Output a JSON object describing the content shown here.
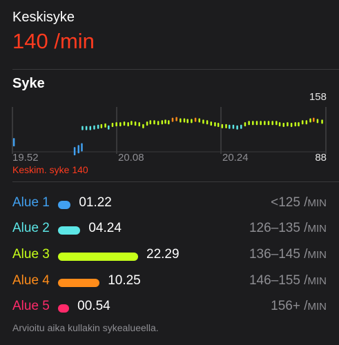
{
  "header": {
    "avg_label": "Keskisyke",
    "avg_value": "140 /min"
  },
  "chart_section": {
    "title": "Syke",
    "y_max_label": "158",
    "y_min_label": "88",
    "x_ticks": [
      "19.52",
      "20.08",
      "20.24"
    ],
    "avg_text": "Keskim. syke 140"
  },
  "chart_data": {
    "type": "scatter",
    "title": "",
    "xlabel": "",
    "ylabel": "",
    "x_ticks": [
      "19.52",
      "20.08",
      "20.24"
    ],
    "ylim": [
      88,
      158
    ],
    "minutes_range": [
      0,
      48
    ],
    "series": [
      {
        "values": [
          [
            0.2,
            103
          ],
          [
            9.5,
            89
          ],
          [
            10.1,
            92
          ],
          [
            10.6,
            95
          ],
          [
            10.7,
            125
          ],
          [
            11.3,
            125
          ],
          [
            11.9,
            125
          ],
          [
            12.5,
            126
          ],
          [
            13.1,
            127
          ],
          [
            13.6,
            128
          ],
          [
            14.2,
            129
          ],
          [
            14.7,
            126
          ],
          [
            15.3,
            130
          ],
          [
            15.9,
            131
          ],
          [
            16.5,
            131
          ],
          [
            17.1,
            132
          ],
          [
            17.7,
            131
          ],
          [
            18.2,
            133
          ],
          [
            18.8,
            132
          ],
          [
            19.4,
            131
          ],
          [
            20.0,
            128
          ],
          [
            20.6,
            132
          ],
          [
            21.1,
            134
          ],
          [
            21.7,
            134
          ],
          [
            22.3,
            133
          ],
          [
            22.9,
            134
          ],
          [
            23.4,
            135
          ],
          [
            23.9,
            134
          ],
          [
            24.5,
            138
          ],
          [
            25.1,
            139
          ],
          [
            25.7,
            137
          ],
          [
            26.3,
            137
          ],
          [
            26.8,
            136
          ],
          [
            27.4,
            136
          ],
          [
            28.0,
            138
          ],
          [
            28.6,
            137
          ],
          [
            29.2,
            135
          ],
          [
            29.8,
            134
          ],
          [
            30.4,
            132
          ],
          [
            31.0,
            131
          ],
          [
            31.5,
            130
          ],
          [
            32.1,
            128
          ],
          [
            32.7,
            128
          ],
          [
            33.2,
            127
          ],
          [
            33.8,
            127
          ],
          [
            34.4,
            126
          ],
          [
            35.0,
            127
          ],
          [
            35.6,
            131
          ],
          [
            36.2,
            133
          ],
          [
            36.8,
            133
          ],
          [
            37.4,
            133
          ],
          [
            38.0,
            133
          ],
          [
            38.6,
            133
          ],
          [
            39.2,
            133
          ],
          [
            39.8,
            133
          ],
          [
            40.4,
            133
          ],
          [
            40.9,
            131
          ],
          [
            41.5,
            130
          ],
          [
            42.1,
            131
          ],
          [
            42.7,
            130
          ],
          [
            43.3,
            131
          ],
          [
            43.8,
            131
          ],
          [
            44.4,
            134
          ],
          [
            45.0,
            134
          ],
          [
            45.6,
            137
          ],
          [
            46.1,
            138
          ],
          [
            46.7,
            136
          ],
          [
            47.4,
            135
          ]
        ]
      }
    ],
    "grid": true
  },
  "zones": [
    {
      "name": "Alue 1",
      "time": "01.22",
      "range": "<125 /",
      "unit": "MIN",
      "color": "#41a0f0",
      "minutes": 1.37
    },
    {
      "name": "Alue 2",
      "time": "04.24",
      "range": "126–135 /",
      "unit": "MIN",
      "color": "#5ce6e6",
      "minutes": 4.4
    },
    {
      "name": "Alue 3",
      "time": "22.29",
      "range": "136–145 /",
      "unit": "MIN",
      "color": "#c6ff1a",
      "minutes": 22.48
    },
    {
      "name": "Alue 4",
      "time": "10.25",
      "range": "146–155 /",
      "unit": "MIN",
      "color": "#ff8c1a",
      "minutes": 10.42
    },
    {
      "name": "Alue 5",
      "time": "00.54",
      "range": "156+ /",
      "unit": "MIN",
      "color": "#ff2a6a",
      "minutes": 0.9
    }
  ],
  "footer": {
    "note": "Arvioitu aika kullakin sykealueella."
  }
}
